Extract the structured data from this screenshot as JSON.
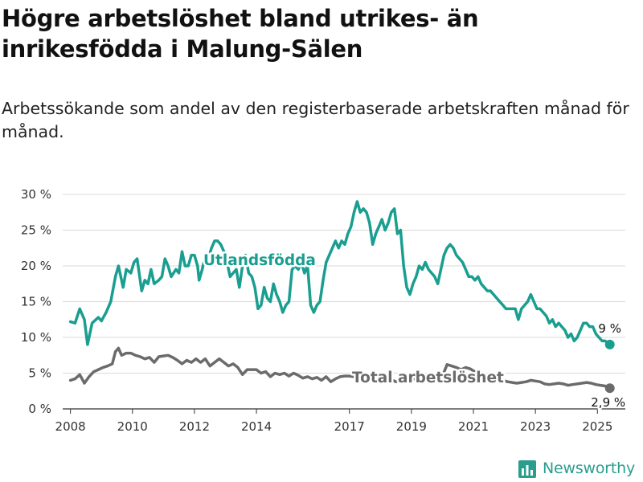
{
  "title": "Högre arbetslöshet bland utrikes- än inrikesfödda i Malung-Sälen",
  "subtitle": "Arbetssökande som andel av den registerbaserade arbetskraften månad för månad.",
  "brand": {
    "name": "Newsworthy",
    "color": "#2a9d8f",
    "icon": "bar-chart-logo-icon"
  },
  "chart_data": {
    "type": "line",
    "ylim": [
      0,
      30
    ],
    "y_ticks": [
      0,
      5,
      10,
      15,
      20,
      25,
      30
    ],
    "y_tick_labels": [
      "0 %",
      "5 %",
      "10 %",
      "15 %",
      "20 %",
      "25 %",
      "30 %"
    ],
    "xlim": [
      2007.75,
      2025.9
    ],
    "x_ticks": [
      2008,
      2010,
      2012,
      2014,
      2017,
      2019,
      2021,
      2023,
      2025
    ],
    "x_tick_labels": [
      "2008",
      "2010",
      "2012",
      "2014",
      "2017",
      "2019",
      "2021",
      "2023",
      "2025"
    ],
    "grid": true,
    "series": [
      {
        "name": "Utlandsfödda",
        "color": "#1a9e90",
        "end_label": "9 %",
        "end_value": 9.0,
        "points": [
          [
            2008.0,
            12.2
          ],
          [
            2008.15,
            12.0
          ],
          [
            2008.3,
            14.0
          ],
          [
            2008.45,
            12.5
          ],
          [
            2008.55,
            9.0
          ],
          [
            2008.7,
            12.0
          ],
          [
            2008.9,
            12.8
          ],
          [
            2009.0,
            12.3
          ],
          [
            2009.15,
            13.5
          ],
          [
            2009.3,
            15.0
          ],
          [
            2009.45,
            18.5
          ],
          [
            2009.55,
            20.0
          ],
          [
            2009.7,
            17.0
          ],
          [
            2009.8,
            19.5
          ],
          [
            2009.95,
            19.0
          ],
          [
            2010.05,
            20.5
          ],
          [
            2010.15,
            21.0
          ],
          [
            2010.3,
            16.5
          ],
          [
            2010.4,
            18.0
          ],
          [
            2010.5,
            17.5
          ],
          [
            2010.6,
            19.5
          ],
          [
            2010.7,
            17.5
          ],
          [
            2010.85,
            18.0
          ],
          [
            2010.95,
            18.5
          ],
          [
            2011.05,
            21.0
          ],
          [
            2011.15,
            20.0
          ],
          [
            2011.25,
            18.5
          ],
          [
            2011.4,
            19.5
          ],
          [
            2011.5,
            19.0
          ],
          [
            2011.6,
            22.0
          ],
          [
            2011.7,
            20.0
          ],
          [
            2011.8,
            20.0
          ],
          [
            2011.9,
            21.5
          ],
          [
            2012.0,
            21.5
          ],
          [
            2012.1,
            20.0
          ],
          [
            2012.15,
            18.0
          ],
          [
            2012.25,
            19.5
          ],
          [
            2012.3,
            20.5
          ],
          [
            2012.45,
            21.0
          ],
          [
            2012.55,
            22.5
          ],
          [
            2012.65,
            23.5
          ],
          [
            2012.75,
            23.5
          ],
          [
            2012.85,
            23.0
          ],
          [
            2012.95,
            22.0
          ],
          [
            2013.05,
            20.5
          ],
          [
            2013.15,
            18.5
          ],
          [
            2013.25,
            19.0
          ],
          [
            2013.35,
            19.5
          ],
          [
            2013.45,
            17.0
          ],
          [
            2013.55,
            20.0
          ],
          [
            2013.65,
            21.5
          ],
          [
            2013.75,
            19.0
          ],
          [
            2013.85,
            18.5
          ],
          [
            2013.95,
            17.0
          ],
          [
            2014.05,
            14.0
          ],
          [
            2014.15,
            14.5
          ],
          [
            2014.25,
            17.0
          ],
          [
            2014.35,
            15.5
          ],
          [
            2014.45,
            15.0
          ],
          [
            2014.55,
            17.5
          ],
          [
            2014.65,
            16.0
          ],
          [
            2014.75,
            15.0
          ],
          [
            2014.85,
            13.5
          ],
          [
            2014.95,
            14.5
          ],
          [
            2015.05,
            15.0
          ],
          [
            2015.15,
            19.5
          ],
          [
            2015.25,
            20.0
          ],
          [
            2015.35,
            19.5
          ],
          [
            2015.45,
            20.5
          ],
          [
            2015.55,
            19.0
          ],
          [
            2015.65,
            20.0
          ],
          [
            2015.75,
            14.5
          ],
          [
            2015.85,
            13.5
          ],
          [
            2015.95,
            14.5
          ],
          [
            2016.05,
            15.0
          ],
          [
            2016.15,
            18.0
          ],
          [
            2016.25,
            20.5
          ],
          [
            2016.35,
            21.5
          ],
          [
            2016.45,
            22.5
          ],
          [
            2016.55,
            23.5
          ],
          [
            2016.65,
            22.5
          ],
          [
            2016.75,
            23.5
          ],
          [
            2016.85,
            23.0
          ],
          [
            2016.95,
            24.5
          ],
          [
            2017.05,
            25.5
          ],
          [
            2017.15,
            27.5
          ],
          [
            2017.25,
            29.0
          ],
          [
            2017.35,
            27.5
          ],
          [
            2017.45,
            28.0
          ],
          [
            2017.55,
            27.5
          ],
          [
            2017.65,
            26.0
          ],
          [
            2017.75,
            23.0
          ],
          [
            2017.85,
            24.5
          ],
          [
            2017.95,
            25.5
          ],
          [
            2018.05,
            26.5
          ],
          [
            2018.15,
            25.0
          ],
          [
            2018.25,
            26.0
          ],
          [
            2018.35,
            27.5
          ],
          [
            2018.45,
            28.0
          ],
          [
            2018.55,
            24.5
          ],
          [
            2018.65,
            25.0
          ],
          [
            2018.75,
            20.0
          ],
          [
            2018.85,
            17.0
          ],
          [
            2018.95,
            16.0
          ],
          [
            2019.05,
            17.5
          ],
          [
            2019.15,
            18.5
          ],
          [
            2019.25,
            20.0
          ],
          [
            2019.35,
            19.5
          ],
          [
            2019.45,
            20.5
          ],
          [
            2019.55,
            19.5
          ],
          [
            2019.65,
            19.0
          ],
          [
            2019.75,
            18.5
          ],
          [
            2019.85,
            17.5
          ],
          [
            2019.95,
            19.5
          ],
          [
            2020.05,
            21.5
          ],
          [
            2020.15,
            22.5
          ],
          [
            2020.25,
            23.0
          ],
          [
            2020.35,
            22.5
          ],
          [
            2020.45,
            21.5
          ],
          [
            2020.55,
            21.0
          ],
          [
            2020.65,
            20.5
          ],
          [
            2020.75,
            19.5
          ],
          [
            2020.85,
            18.5
          ],
          [
            2020.95,
            18.5
          ],
          [
            2021.05,
            18.0
          ],
          [
            2021.15,
            18.5
          ],
          [
            2021.25,
            17.5
          ],
          [
            2021.35,
            17.0
          ],
          [
            2021.45,
            16.5
          ],
          [
            2021.55,
            16.5
          ],
          [
            2021.65,
            16.0
          ],
          [
            2021.75,
            15.5
          ],
          [
            2021.85,
            15.0
          ],
          [
            2021.95,
            14.5
          ],
          [
            2022.05,
            14.0
          ],
          [
            2022.15,
            14.0
          ],
          [
            2022.25,
            14.0
          ],
          [
            2022.35,
            14.0
          ],
          [
            2022.45,
            12.5
          ],
          [
            2022.55,
            14.0
          ],
          [
            2022.65,
            14.5
          ],
          [
            2022.75,
            15.0
          ],
          [
            2022.85,
            16.0
          ],
          [
            2022.95,
            15.0
          ],
          [
            2023.05,
            14.0
          ],
          [
            2023.15,
            14.0
          ],
          [
            2023.25,
            13.5
          ],
          [
            2023.35,
            13.0
          ],
          [
            2023.45,
            12.0
          ],
          [
            2023.55,
            12.5
          ],
          [
            2023.65,
            11.5
          ],
          [
            2023.75,
            12.0
          ],
          [
            2023.85,
            11.5
          ],
          [
            2023.95,
            11.0
          ],
          [
            2024.05,
            10.0
          ],
          [
            2024.15,
            10.5
          ],
          [
            2024.25,
            9.5
          ],
          [
            2024.35,
            10.0
          ],
          [
            2024.45,
            11.0
          ],
          [
            2024.55,
            12.0
          ],
          [
            2024.65,
            12.0
          ],
          [
            2024.75,
            11.5
          ],
          [
            2024.85,
            11.5
          ],
          [
            2024.95,
            10.5
          ],
          [
            2025.05,
            10.0
          ],
          [
            2025.15,
            9.5
          ],
          [
            2025.25,
            9.5
          ],
          [
            2025.4,
            9.0
          ]
        ]
      },
      {
        "name": "Total arbetslöshet",
        "color": "#6b6b6b",
        "end_label": "2,9 %",
        "end_value": 2.9,
        "points": [
          [
            2008.0,
            4.0
          ],
          [
            2008.15,
            4.2
          ],
          [
            2008.3,
            4.8
          ],
          [
            2008.45,
            3.6
          ],
          [
            2008.6,
            4.5
          ],
          [
            2008.75,
            5.2
          ],
          [
            2008.9,
            5.5
          ],
          [
            2009.05,
            5.8
          ],
          [
            2009.2,
            6.0
          ],
          [
            2009.35,
            6.3
          ],
          [
            2009.45,
            8.0
          ],
          [
            2009.55,
            8.5
          ],
          [
            2009.65,
            7.5
          ],
          [
            2009.8,
            7.8
          ],
          [
            2009.95,
            7.8
          ],
          [
            2010.1,
            7.5
          ],
          [
            2010.25,
            7.3
          ],
          [
            2010.4,
            7.0
          ],
          [
            2010.55,
            7.2
          ],
          [
            2010.7,
            6.5
          ],
          [
            2010.85,
            7.3
          ],
          [
            2011.0,
            7.4
          ],
          [
            2011.15,
            7.5
          ],
          [
            2011.3,
            7.2
          ],
          [
            2011.45,
            6.8
          ],
          [
            2011.6,
            6.3
          ],
          [
            2011.75,
            6.8
          ],
          [
            2011.9,
            6.5
          ],
          [
            2012.05,
            7.0
          ],
          [
            2012.2,
            6.5
          ],
          [
            2012.35,
            7.0
          ],
          [
            2012.5,
            6.0
          ],
          [
            2012.65,
            6.5
          ],
          [
            2012.8,
            7.0
          ],
          [
            2012.95,
            6.5
          ],
          [
            2013.1,
            6.0
          ],
          [
            2013.25,
            6.3
          ],
          [
            2013.4,
            5.8
          ],
          [
            2013.55,
            4.8
          ],
          [
            2013.7,
            5.5
          ],
          [
            2013.85,
            5.5
          ],
          [
            2014.0,
            5.5
          ],
          [
            2014.15,
            5.0
          ],
          [
            2014.3,
            5.2
          ],
          [
            2014.45,
            4.5
          ],
          [
            2014.6,
            5.0
          ],
          [
            2014.75,
            4.8
          ],
          [
            2014.9,
            5.0
          ],
          [
            2015.05,
            4.6
          ],
          [
            2015.2,
            5.0
          ],
          [
            2015.35,
            4.7
          ],
          [
            2015.5,
            4.3
          ],
          [
            2015.65,
            4.5
          ],
          [
            2015.8,
            4.2
          ],
          [
            2015.95,
            4.4
          ],
          [
            2016.1,
            4.0
          ],
          [
            2016.25,
            4.5
          ],
          [
            2016.4,
            3.8
          ],
          [
            2016.55,
            4.2
          ],
          [
            2016.7,
            4.5
          ],
          [
            2016.85,
            4.6
          ],
          [
            2017.0,
            4.6
          ],
          [
            2017.15,
            4.5
          ],
          [
            2017.3,
            4.4
          ],
          [
            2017.45,
            4.5
          ],
          [
            2017.6,
            4.3
          ],
          [
            2017.75,
            4.2
          ],
          [
            2017.9,
            4.0
          ],
          [
            2018.05,
            4.2
          ],
          [
            2018.2,
            4.0
          ],
          [
            2018.35,
            4.1
          ],
          [
            2018.5,
            3.8
          ],
          [
            2018.65,
            3.9
          ],
          [
            2018.8,
            3.9
          ],
          [
            2018.95,
            4.0
          ],
          [
            2019.1,
            4.2
          ],
          [
            2019.25,
            4.0
          ],
          [
            2019.4,
            4.3
          ],
          [
            2019.55,
            4.2
          ],
          [
            2019.7,
            4.6
          ],
          [
            2019.85,
            4.3
          ],
          [
            2020.0,
            4.6
          ],
          [
            2020.15,
            6.2
          ],
          [
            2020.3,
            6.0
          ],
          [
            2020.45,
            5.8
          ],
          [
            2020.6,
            5.5
          ],
          [
            2020.75,
            5.8
          ],
          [
            2020.9,
            5.6
          ],
          [
            2021.05,
            5.2
          ],
          [
            2021.2,
            4.9
          ],
          [
            2021.35,
            4.6
          ],
          [
            2021.5,
            4.4
          ],
          [
            2021.65,
            4.2
          ],
          [
            2021.8,
            4.0
          ],
          [
            2021.95,
            4.0
          ],
          [
            2022.1,
            3.8
          ],
          [
            2022.25,
            3.7
          ],
          [
            2022.4,
            3.6
          ],
          [
            2022.55,
            3.7
          ],
          [
            2022.7,
            3.8
          ],
          [
            2022.85,
            4.0
          ],
          [
            2023.0,
            3.9
          ],
          [
            2023.15,
            3.8
          ],
          [
            2023.3,
            3.5
          ],
          [
            2023.45,
            3.4
          ],
          [
            2023.6,
            3.5
          ],
          [
            2023.75,
            3.6
          ],
          [
            2023.9,
            3.5
          ],
          [
            2024.05,
            3.3
          ],
          [
            2024.2,
            3.4
          ],
          [
            2024.35,
            3.5
          ],
          [
            2024.5,
            3.6
          ],
          [
            2024.65,
            3.7
          ],
          [
            2024.8,
            3.6
          ],
          [
            2024.95,
            3.4
          ],
          [
            2025.1,
            3.3
          ],
          [
            2025.25,
            3.2
          ],
          [
            2025.4,
            2.9
          ]
        ]
      }
    ]
  }
}
